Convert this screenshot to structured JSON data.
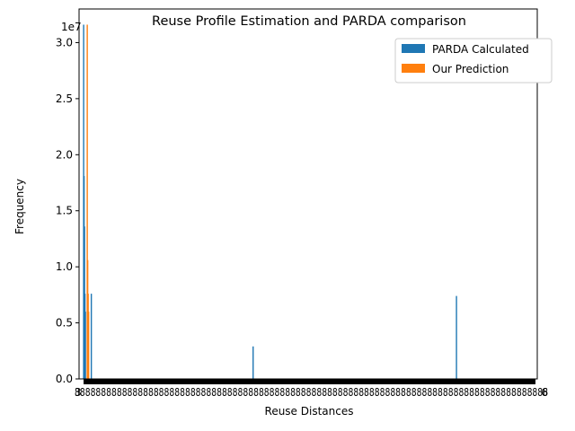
{
  "chart_data": {
    "type": "bar",
    "title": "Reuse Profile Estimation and PARDA comparison",
    "xlabel": "Reuse Distances",
    "ylabel": "Frequency",
    "y_offset_text": "1e7",
    "ylim": [
      0,
      3.3
    ],
    "yticks": [
      "0.0",
      "0.5",
      "1.0",
      "1.5",
      "2.0",
      "2.5",
      "3.0"
    ],
    "ytick_values": [
      0,
      0.5,
      1.0,
      1.5,
      2.0,
      2.5,
      3.0
    ],
    "xlim": [
      0,
      1000
    ],
    "xtick_first_label": "3",
    "xtick_last_label": "6",
    "legend": {
      "placement": "top-right"
    },
    "series": [
      {
        "name": "PARDA Calculated",
        "color": "#1f77b4",
        "x": [
          0,
          1,
          2,
          3,
          4,
          17,
          375,
          825
        ],
        "values": [
          3.16,
          1.81,
          1.36,
          0.76,
          0.6,
          0.76,
          0.29,
          0.74
        ]
      },
      {
        "name": "Our Prediction",
        "color": "#ff7f0e",
        "x": [
          8,
          9,
          10,
          11
        ],
        "values": [
          3.16,
          1.06,
          0.76,
          0.6
        ]
      }
    ]
  }
}
